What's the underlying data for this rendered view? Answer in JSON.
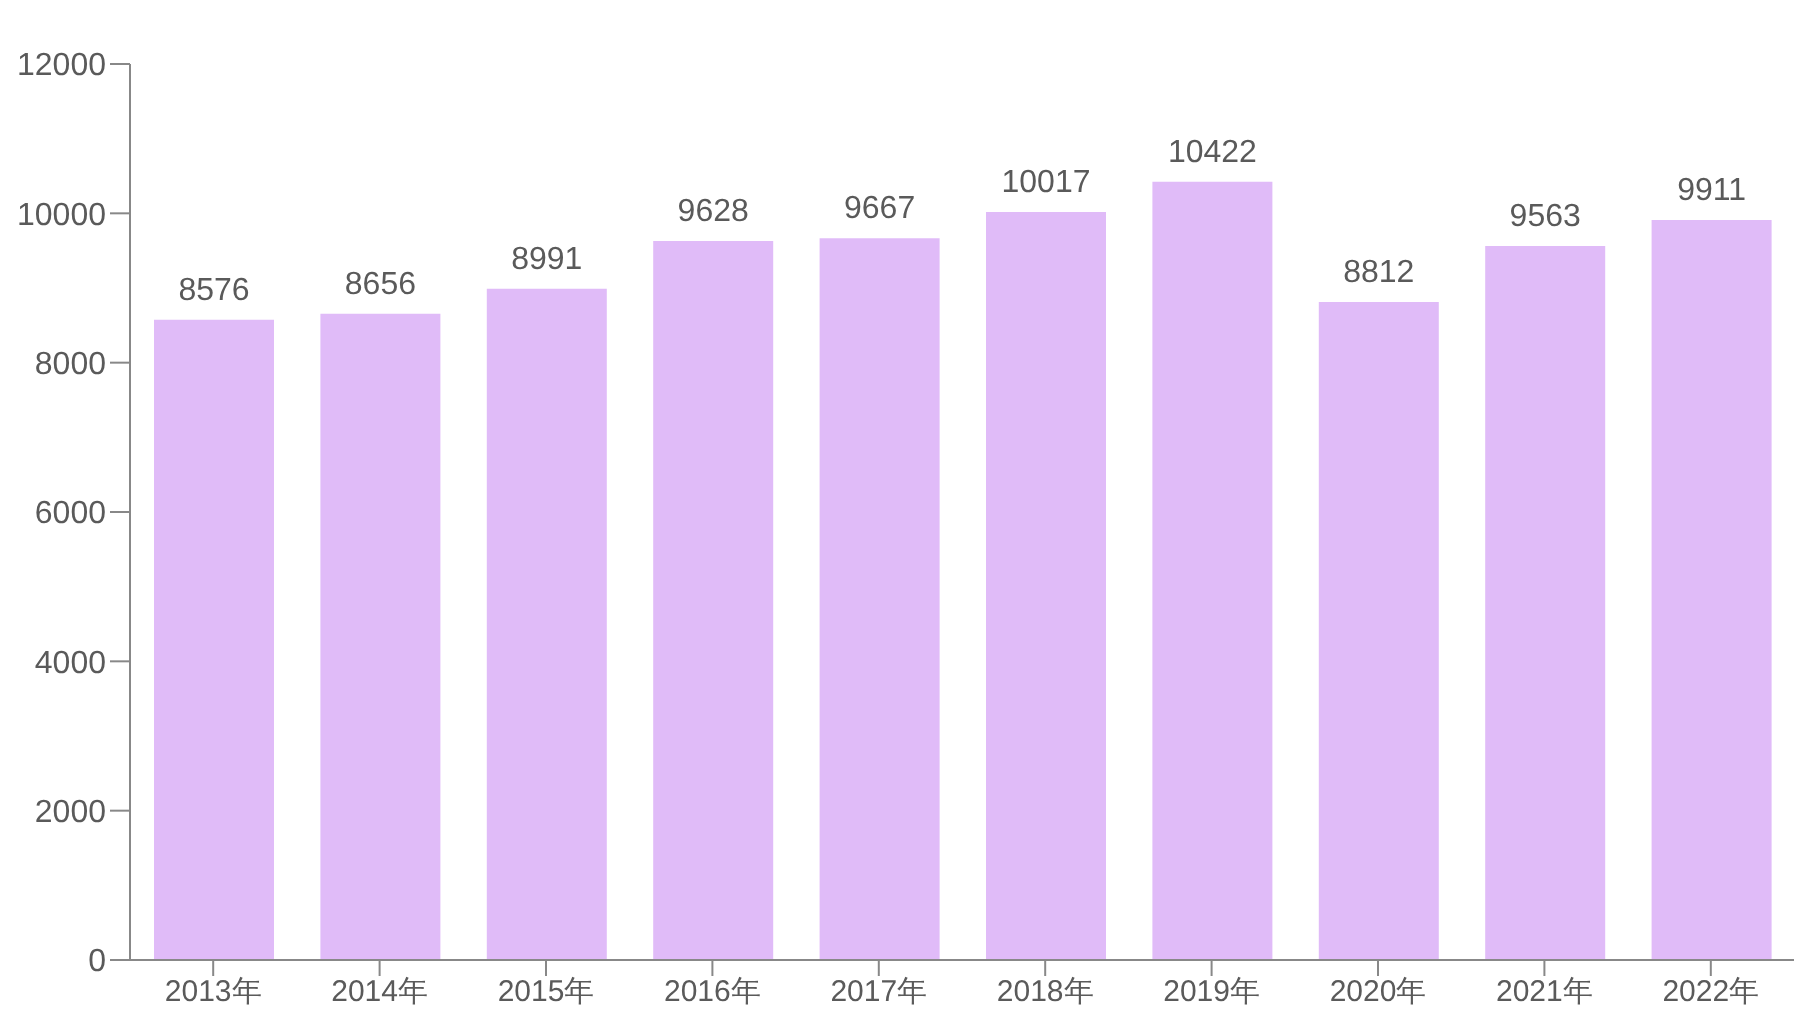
{
  "chart_data": {
    "type": "bar",
    "categories": [
      "2013年",
      "2014年",
      "2015年",
      "2016年",
      "2017年",
      "2018年",
      "2019年",
      "2020年",
      "2021年",
      "2022年"
    ],
    "values": [
      8576,
      8656,
      8991,
      9628,
      9667,
      10017,
      10422,
      8812,
      9563,
      9911
    ],
    "color": "#e0bbf8",
    "ylim": [
      0,
      12000
    ],
    "yticks": [
      0,
      2000,
      4000,
      6000,
      8000,
      10000,
      12000
    ],
    "grid": false,
    "data_labels": true
  }
}
